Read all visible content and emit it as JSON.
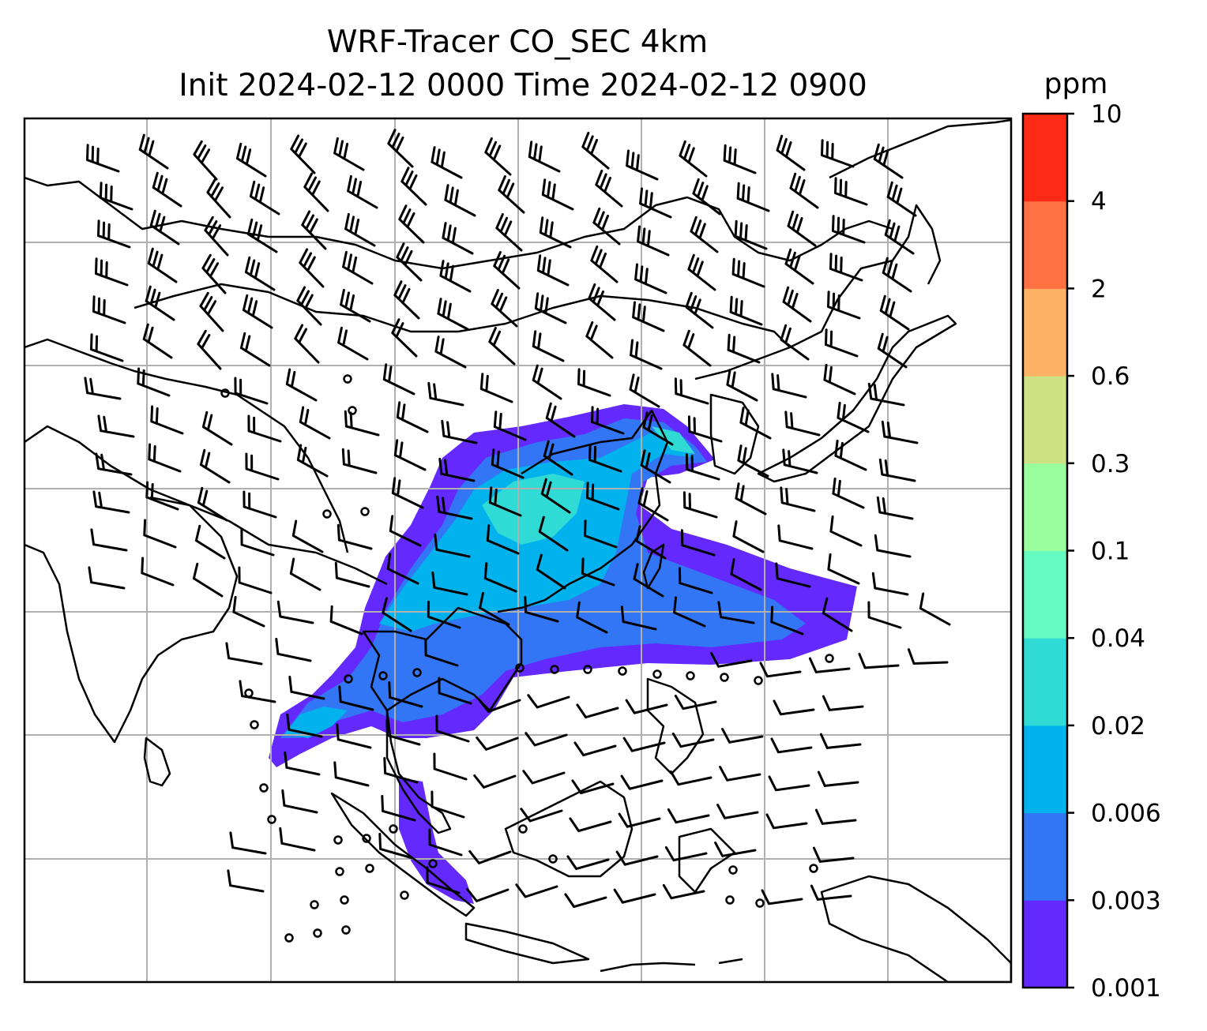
{
  "title": {
    "line1": "WRF-Tracer CO_SEC 4km",
    "line2": "Init 2024-02-12 0000 Time 2024-02-12 0900"
  },
  "colorbar": {
    "unit": "ppm",
    "levels": [
      "0.001",
      "0.003",
      "0.006",
      "0.02",
      "0.04",
      "0.1",
      "0.3",
      "0.6",
      "2",
      "4",
      "10"
    ],
    "colors": [
      "#6429fc",
      "#3376f5",
      "#02b2ec",
      "#30dbd6",
      "#65fbc0",
      "#9afd9d",
      "#cde083",
      "#fdb265",
      "#fe7142",
      "#fd2a16"
    ]
  },
  "map": {
    "variable": "CO_SEC tracer concentration",
    "overlay": "wind barbs",
    "gridlines": true,
    "land_outline_color": "#000000",
    "gridline_color": "#b0b0b0"
  }
}
